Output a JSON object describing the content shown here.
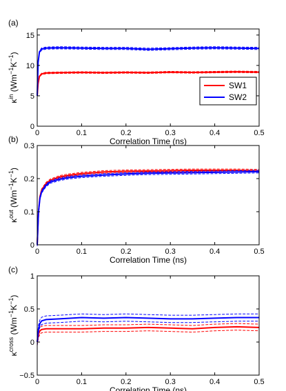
{
  "colors": {
    "SW1": "#ff0000",
    "SW2": "#0000ff",
    "axis": "#000000"
  },
  "chart_data": [
    {
      "type": "line",
      "panel_label": "(a)",
      "xlabel": "Correlation Time (ns)",
      "ylabel_base": "κ",
      "ylabel_sup": "in",
      "ylabel_units_prefix": " (Wm",
      "ylabel_units_exp1": "−1",
      "ylabel_units_mid": "K",
      "ylabel_units_exp2": "−1",
      "ylabel_units_suffix": ")",
      "xlim": [
        0,
        0.5
      ],
      "ylim": [
        0,
        16
      ],
      "xticks": [
        0,
        0.1,
        0.2,
        0.3,
        0.4,
        0.5
      ],
      "xtick_labels": [
        "0",
        "0.1",
        "0.2",
        "0.3",
        "0.4",
        "0.5"
      ],
      "yticks": [
        0,
        5,
        10,
        15
      ],
      "ytick_labels": [
        "0",
        "5",
        "10",
        "15"
      ],
      "legend": {
        "position": "right-middle",
        "entries": [
          "SW1",
          "SW2"
        ]
      },
      "series": [
        {
          "name": "SW1",
          "color_key": "SW1",
          "x": [
            0,
            0.002,
            0.005,
            0.01,
            0.02,
            0.05,
            0.1,
            0.15,
            0.2,
            0.25,
            0.3,
            0.35,
            0.4,
            0.45,
            0.5
          ],
          "values": [
            5.0,
            7.0,
            8.2,
            8.6,
            8.75,
            8.8,
            8.85,
            8.8,
            8.85,
            8.8,
            8.9,
            8.85,
            8.9,
            8.95,
            8.9
          ],
          "band": 0.12
        },
        {
          "name": "SW2",
          "color_key": "SW2",
          "x": [
            0,
            0.002,
            0.005,
            0.01,
            0.02,
            0.05,
            0.1,
            0.15,
            0.2,
            0.25,
            0.3,
            0.35,
            0.4,
            0.45,
            0.5
          ],
          "values": [
            5.0,
            10.5,
            12.2,
            12.7,
            12.85,
            12.9,
            12.85,
            12.8,
            12.8,
            12.65,
            12.75,
            12.85,
            12.9,
            12.85,
            12.8
          ],
          "band": 0.18
        }
      ]
    },
    {
      "type": "line",
      "panel_label": "(b)",
      "xlabel": "Correlation Time (ns)",
      "ylabel_base": "κ",
      "ylabel_sup": "out",
      "ylabel_units_prefix": " (Wm",
      "ylabel_units_exp1": "−1",
      "ylabel_units_mid": "K",
      "ylabel_units_exp2": "−1",
      "ylabel_units_suffix": ")",
      "xlim": [
        0,
        0.5
      ],
      "ylim": [
        0,
        0.3
      ],
      "xticks": [
        0,
        0.1,
        0.2,
        0.3,
        0.4,
        0.5
      ],
      "xtick_labels": [
        "0",
        "0.1",
        "0.2",
        "0.3",
        "0.4",
        "0.5"
      ],
      "yticks": [
        0,
        0.1,
        0.2,
        0.3
      ],
      "ytick_labels": [
        "0",
        "0.1",
        "0.2",
        "0.3"
      ],
      "series": [
        {
          "name": "SW1",
          "color_key": "SW1",
          "x": [
            0,
            0.003,
            0.006,
            0.01,
            0.02,
            0.03,
            0.05,
            0.07,
            0.1,
            0.15,
            0.2,
            0.25,
            0.3,
            0.35,
            0.4,
            0.45,
            0.5
          ],
          "values": [
            0.0,
            0.1,
            0.145,
            0.165,
            0.185,
            0.195,
            0.205,
            0.21,
            0.215,
            0.22,
            0.222,
            0.223,
            0.224,
            0.225,
            0.225,
            0.225,
            0.224
          ],
          "band": 0.004
        },
        {
          "name": "SW2",
          "color_key": "SW2",
          "x": [
            0,
            0.003,
            0.006,
            0.01,
            0.02,
            0.03,
            0.05,
            0.07,
            0.1,
            0.15,
            0.2,
            0.25,
            0.3,
            0.35,
            0.4,
            0.45,
            0.5
          ],
          "values": [
            0.0,
            0.1,
            0.14,
            0.16,
            0.18,
            0.19,
            0.198,
            0.203,
            0.207,
            0.211,
            0.214,
            0.216,
            0.217,
            0.218,
            0.219,
            0.22,
            0.221
          ],
          "band": 0.004
        }
      ]
    },
    {
      "type": "line",
      "panel_label": "(c)",
      "xlabel": "Correlation Time (ns)",
      "ylabel_base": "κ",
      "ylabel_sup": "cross",
      "ylabel_units_prefix": " (Wm",
      "ylabel_units_exp1": "−1",
      "ylabel_units_mid": "K",
      "ylabel_units_exp2": "−1",
      "ylabel_units_suffix": ")",
      "xlim": [
        0,
        0.5
      ],
      "ylim": [
        -0.5,
        1
      ],
      "xticks": [
        0,
        0.1,
        0.2,
        0.3,
        0.4,
        0.5
      ],
      "xtick_labels": [
        "0",
        "0.1",
        "0.2",
        "0.3",
        "0.4",
        "0.5"
      ],
      "yticks": [
        -0.5,
        0,
        0.5,
        1
      ],
      "ytick_labels": [
        "−0.5",
        "0",
        "0.5",
        "1"
      ],
      "series": [
        {
          "name": "SW1",
          "color_key": "SW1",
          "x": [
            0,
            0.003,
            0.006,
            0.01,
            0.02,
            0.05,
            0.1,
            0.15,
            0.2,
            0.25,
            0.3,
            0.35,
            0.4,
            0.45,
            0.5
          ],
          "values": [
            0.0,
            0.12,
            0.17,
            0.19,
            0.2,
            0.2,
            0.2,
            0.21,
            0.21,
            0.22,
            0.21,
            0.2,
            0.22,
            0.23,
            0.22
          ],
          "band": 0.05
        },
        {
          "name": "SW2",
          "color_key": "SW2",
          "x": [
            0,
            0.003,
            0.006,
            0.01,
            0.02,
            0.05,
            0.1,
            0.15,
            0.2,
            0.25,
            0.3,
            0.35,
            0.4,
            0.45,
            0.5
          ],
          "values": [
            0.0,
            0.2,
            0.28,
            0.32,
            0.34,
            0.35,
            0.37,
            0.36,
            0.37,
            0.36,
            0.35,
            0.35,
            0.36,
            0.37,
            0.37
          ],
          "band": 0.055
        }
      ]
    }
  ]
}
